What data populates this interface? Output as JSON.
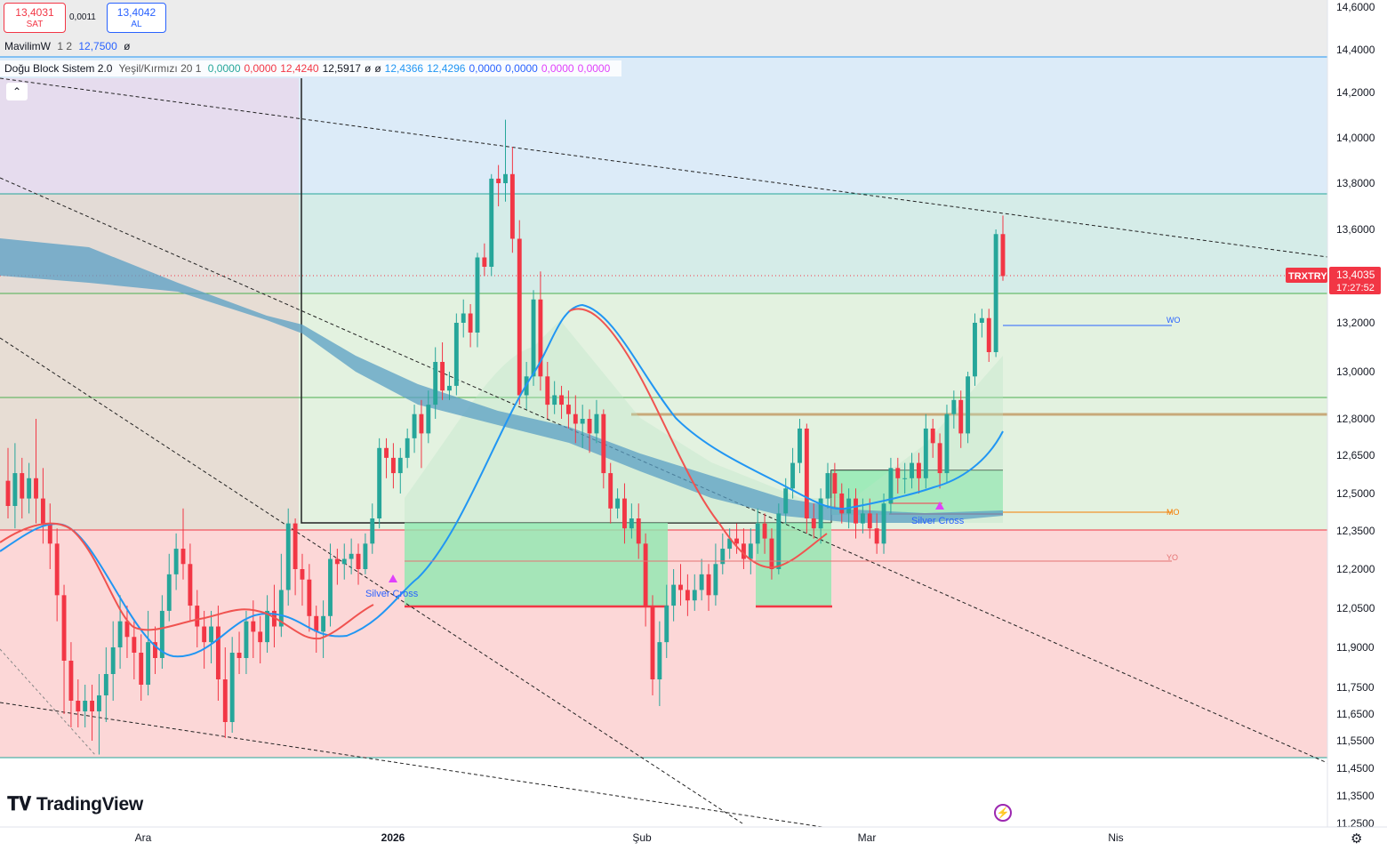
{
  "order_panel": {
    "sell_price": "13,4031",
    "sell_label": "SAT",
    "spread": "0,0011",
    "buy_price": "13,4042",
    "buy_label": "AL"
  },
  "legend1": {
    "name": "MavilimW",
    "params": "1 2",
    "value": "12,7500",
    "extra": "ø"
  },
  "legend2": {
    "name": "Doğu Block Sistem 2.0",
    "params": "Yeşil/Kırmızı 20 1",
    "values": [
      {
        "text": "0,0000",
        "color": "#26a69a"
      },
      {
        "text": "0,0000",
        "color": "#f23645"
      },
      {
        "text": "12,4240",
        "color": "#f23645"
      },
      {
        "text": "12,5917",
        "color": "#131722"
      },
      {
        "text": "ø",
        "color": "#131722"
      },
      {
        "text": "ø",
        "color": "#131722"
      },
      {
        "text": "12,4366",
        "color": "#2196f3"
      },
      {
        "text": "12,4296",
        "color": "#2196f3"
      },
      {
        "text": "0,0000",
        "color": "#2962ff"
      },
      {
        "text": "0,0000",
        "color": "#2962ff"
      },
      {
        "text": "0,0000",
        "color": "#e040fb"
      },
      {
        "text": "0,0000",
        "color": "#e040fb"
      }
    ],
    "collapse_icon": "chevron-up-icon"
  },
  "symbol": {
    "ticker": "TRXTRY",
    "last_price": "13,4035",
    "countdown": "17:27:52"
  },
  "price_axis": {
    "labels": [
      "14,6000",
      "14,4000",
      "14,2000",
      "14,0000",
      "13,8000",
      "13,6000",
      "13,2000",
      "13,0000",
      "12,8000",
      "12,6500",
      "12,5000",
      "12,3500",
      "12,2000",
      "12,0500",
      "11,9000",
      "11,7500",
      "11,6500",
      "11,5500",
      "11,4500",
      "11,3500",
      "11,2500"
    ]
  },
  "time_axis": {
    "labels": [
      "Ara",
      "2026",
      "Şub",
      "Mar",
      "Nis"
    ]
  },
  "annotations": {
    "silver_cross_1": "Silver Cross",
    "silver_cross_2": "Silver Cross",
    "wo": "WO",
    "mo": "MO",
    "yo": "YO"
  },
  "branding": {
    "logo_text": "TradingView",
    "logo_icon": "tradingview-logo-icon"
  },
  "colors": {
    "up": "#26a69a",
    "down": "#f23645",
    "blue_line": "#2196f3",
    "red_curve": "#f05350",
    "band": "#5a9fc4",
    "price_tag": "#f23645"
  },
  "chart_data": {
    "type": "candlestick",
    "symbol": "TRXTRY",
    "x_labels": [
      "Ara",
      "2026",
      "Şub",
      "Mar",
      "Nis"
    ],
    "ylim": [
      11.25,
      14.6
    ],
    "last_close": 13.4035,
    "candles": [
      [
        12.55,
        12.45,
        12.68,
        12.4
      ],
      [
        12.45,
        12.58,
        12.7,
        12.36
      ],
      [
        12.58,
        12.48,
        12.64,
        12.4
      ],
      [
        12.48,
        12.56,
        12.62,
        12.42
      ],
      [
        12.56,
        12.48,
        12.8,
        12.38
      ],
      [
        12.48,
        12.38,
        12.6,
        12.3
      ],
      [
        12.38,
        12.3,
        12.46,
        12.2
      ],
      [
        12.3,
        12.1,
        12.36,
        12.0
      ],
      [
        12.1,
        11.85,
        12.14,
        11.65
      ],
      [
        11.85,
        11.7,
        11.92,
        11.6
      ],
      [
        11.7,
        11.66,
        11.78,
        11.6
      ],
      [
        11.66,
        11.7,
        11.76,
        11.6
      ],
      [
        11.7,
        11.66,
        11.76,
        11.55
      ],
      [
        11.66,
        11.72,
        11.8,
        11.5
      ],
      [
        11.72,
        11.8,
        11.9,
        11.62
      ],
      [
        11.8,
        11.9,
        12.0,
        11.7
      ],
      [
        11.9,
        12.0,
        12.1,
        11.82
      ],
      [
        12.0,
        11.94,
        12.06,
        11.86
      ],
      [
        11.94,
        11.88,
        12.0,
        11.78
      ],
      [
        11.88,
        11.76,
        11.95,
        11.7
      ],
      [
        11.76,
        11.92,
        12.04,
        11.72
      ],
      [
        11.92,
        11.86,
        11.98,
        11.8
      ],
      [
        11.86,
        12.04,
        12.1,
        11.82
      ],
      [
        12.04,
        12.18,
        12.26,
        12.0
      ],
      [
        12.18,
        12.28,
        12.34,
        12.12
      ],
      [
        12.28,
        12.22,
        12.44,
        12.16
      ],
      [
        12.22,
        12.06,
        12.3,
        12.0
      ],
      [
        12.06,
        11.98,
        12.12,
        11.9
      ],
      [
        11.98,
        11.92,
        12.04,
        11.82
      ],
      [
        11.92,
        11.98,
        12.04,
        11.84
      ],
      [
        11.98,
        11.78,
        12.06,
        11.7
      ],
      [
        11.78,
        11.62,
        11.9,
        11.56
      ],
      [
        11.62,
        11.88,
        11.94,
        11.58
      ],
      [
        11.88,
        11.86,
        11.96,
        11.8
      ],
      [
        11.86,
        12.0,
        12.04,
        11.8
      ],
      [
        12.0,
        11.96,
        12.08,
        11.86
      ],
      [
        11.96,
        11.92,
        12.02,
        11.84
      ],
      [
        11.92,
        12.04,
        12.1,
        11.88
      ],
      [
        12.04,
        11.98,
        12.14,
        11.9
      ],
      [
        11.98,
        12.12,
        12.26,
        11.94
      ],
      [
        12.12,
        12.38,
        12.44,
        12.06
      ],
      [
        12.38,
        12.2,
        12.4,
        12.1
      ],
      [
        12.2,
        12.16,
        12.26,
        12.06
      ],
      [
        12.16,
        12.02,
        12.22,
        11.96
      ],
      [
        12.02,
        11.96,
        12.06,
        11.88
      ],
      [
        11.96,
        12.02,
        12.08,
        11.86
      ],
      [
        12.02,
        12.24,
        12.3,
        11.98
      ],
      [
        12.24,
        12.22,
        12.28,
        12.14
      ],
      [
        12.22,
        12.24,
        12.3,
        12.16
      ],
      [
        12.24,
        12.26,
        12.32,
        12.18
      ],
      [
        12.26,
        12.2,
        12.3,
        12.14
      ],
      [
        12.2,
        12.3,
        12.34,
        12.18
      ],
      [
        12.3,
        12.4,
        12.46,
        12.26
      ],
      [
        12.4,
        12.68,
        12.72,
        12.36
      ],
      [
        12.68,
        12.64,
        12.72,
        12.56
      ],
      [
        12.64,
        12.58,
        12.7,
        12.52
      ],
      [
        12.58,
        12.64,
        12.68,
        12.5
      ],
      [
        12.64,
        12.72,
        12.76,
        12.6
      ],
      [
        12.72,
        12.82,
        12.86,
        12.66
      ],
      [
        12.82,
        12.74,
        12.88,
        12.6
      ],
      [
        12.74,
        12.86,
        12.92,
        12.7
      ],
      [
        12.86,
        13.04,
        13.1,
        12.8
      ],
      [
        13.04,
        12.92,
        13.12,
        12.88
      ],
      [
        12.92,
        12.94,
        13.0,
        12.88
      ],
      [
        12.94,
        13.2,
        13.24,
        12.9
      ],
      [
        13.2,
        13.24,
        13.3,
        13.14
      ],
      [
        13.24,
        13.16,
        13.28,
        13.1
      ],
      [
        13.16,
        13.48,
        13.5,
        13.1
      ],
      [
        13.48,
        13.44,
        13.54,
        13.4
      ],
      [
        13.44,
        13.82,
        13.84,
        13.4
      ],
      [
        13.82,
        13.8,
        13.88,
        13.7
      ],
      [
        13.8,
        13.84,
        14.08,
        13.72
      ],
      [
        13.84,
        13.56,
        13.96,
        13.5
      ],
      [
        13.56,
        12.9,
        13.64,
        12.86
      ],
      [
        12.9,
        12.98,
        13.04,
        12.84
      ],
      [
        12.98,
        13.3,
        13.34,
        12.94
      ],
      [
        13.3,
        12.98,
        13.42,
        12.92
      ],
      [
        12.98,
        12.86,
        13.04,
        12.8
      ],
      [
        12.86,
        12.9,
        12.96,
        12.82
      ],
      [
        12.9,
        12.86,
        12.94,
        12.8
      ],
      [
        12.86,
        12.82,
        12.92,
        12.76
      ],
      [
        12.82,
        12.78,
        12.9,
        12.7
      ],
      [
        12.78,
        12.8,
        12.86,
        12.68
      ],
      [
        12.8,
        12.74,
        12.84,
        12.66
      ],
      [
        12.74,
        12.82,
        12.88,
        12.7
      ],
      [
        12.82,
        12.58,
        12.84,
        12.52
      ],
      [
        12.58,
        12.44,
        12.62,
        12.38
      ],
      [
        12.44,
        12.48,
        12.52,
        12.4
      ],
      [
        12.48,
        12.36,
        12.54,
        12.3
      ],
      [
        12.36,
        12.4,
        12.46,
        12.32
      ],
      [
        12.4,
        12.3,
        12.46,
        12.24
      ],
      [
        12.3,
        12.06,
        12.34,
        11.98
      ],
      [
        12.06,
        11.78,
        12.1,
        11.72
      ],
      [
        11.78,
        11.92,
        12.0,
        11.68
      ],
      [
        11.92,
        12.06,
        12.14,
        11.86
      ],
      [
        12.06,
        12.14,
        12.2,
        12.0
      ],
      [
        12.14,
        12.12,
        12.22,
        12.06
      ],
      [
        12.12,
        12.08,
        12.18,
        12.02
      ],
      [
        12.08,
        12.12,
        12.18,
        12.04
      ],
      [
        12.12,
        12.18,
        12.24,
        12.08
      ],
      [
        12.18,
        12.1,
        12.22,
        12.04
      ],
      [
        12.1,
        12.22,
        12.3,
        12.06
      ],
      [
        12.22,
        12.28,
        12.34,
        12.18
      ],
      [
        12.28,
        12.32,
        12.36,
        12.24
      ],
      [
        12.32,
        12.3,
        12.38,
        12.26
      ],
      [
        12.3,
        12.24,
        12.36,
        12.2
      ],
      [
        12.24,
        12.3,
        12.36,
        12.18
      ],
      [
        12.3,
        12.38,
        12.44,
        12.26
      ],
      [
        12.38,
        12.32,
        12.42,
        12.26
      ],
      [
        12.32,
        12.2,
        12.36,
        12.16
      ],
      [
        12.2,
        12.42,
        12.46,
        12.18
      ],
      [
        12.42,
        12.52,
        12.56,
        12.38
      ],
      [
        12.52,
        12.62,
        12.68,
        12.48
      ],
      [
        12.62,
        12.76,
        12.8,
        12.58
      ],
      [
        12.76,
        12.4,
        12.78,
        12.34
      ],
      [
        12.4,
        12.36,
        12.46,
        12.32
      ],
      [
        12.36,
        12.48,
        12.52,
        12.3
      ],
      [
        12.48,
        12.58,
        12.62,
        12.44
      ],
      [
        12.58,
        12.5,
        12.62,
        12.44
      ],
      [
        12.5,
        12.42,
        12.54,
        12.38
      ],
      [
        12.42,
        12.48,
        12.52,
        12.36
      ],
      [
        12.48,
        12.38,
        12.52,
        12.32
      ],
      [
        12.38,
        12.42,
        12.48,
        12.34
      ],
      [
        12.42,
        12.36,
        12.48,
        12.32
      ],
      [
        12.36,
        12.3,
        12.42,
        12.26
      ],
      [
        12.3,
        12.46,
        12.5,
        12.26
      ],
      [
        12.46,
        12.6,
        12.64,
        12.42
      ],
      [
        12.6,
        12.56,
        12.64,
        12.5
      ],
      [
        12.56,
        12.56,
        12.62,
        12.5
      ],
      [
        12.56,
        12.62,
        12.66,
        12.52
      ],
      [
        12.62,
        12.56,
        12.66,
        12.5
      ],
      [
        12.56,
        12.76,
        12.82,
        12.52
      ],
      [
        12.76,
        12.7,
        12.8,
        12.64
      ],
      [
        12.7,
        12.58,
        12.74,
        12.52
      ],
      [
        12.58,
        12.82,
        12.86,
        12.54
      ],
      [
        12.82,
        12.88,
        12.92,
        12.76
      ],
      [
        12.88,
        12.74,
        12.92,
        12.68
      ],
      [
        12.74,
        12.98,
        13.0,
        12.7
      ],
      [
        12.98,
        13.2,
        13.24,
        12.94
      ],
      [
        13.2,
        13.22,
        13.26,
        13.14
      ],
      [
        13.22,
        13.08,
        13.26,
        13.04
      ],
      [
        13.08,
        13.58,
        13.6,
        13.06
      ],
      [
        13.58,
        13.4,
        13.66,
        13.38
      ]
    ]
  }
}
